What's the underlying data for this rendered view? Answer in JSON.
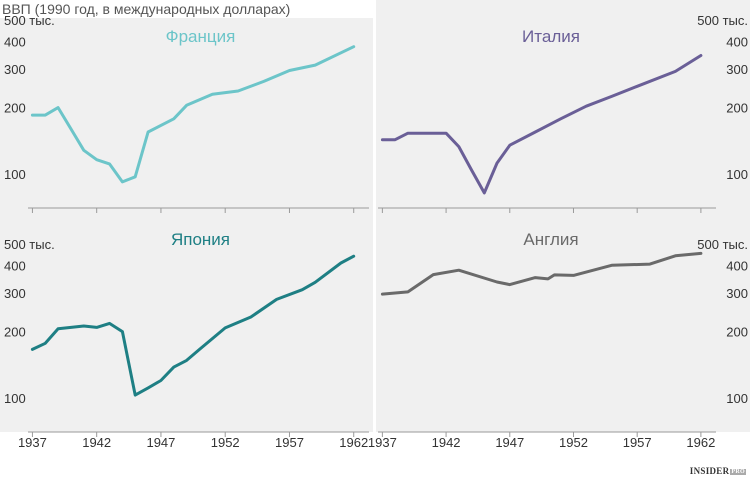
{
  "title": "ВВП (1990 год, в международных долларах)",
  "brand": {
    "name": "INSIDER",
    "badge": "PRO"
  },
  "colors": {
    "panel_bg": "#f0f0f0",
    "axis": "#9a9a9a",
    "text": "#333333",
    "france": "#6cc5c9",
    "italy": "#6a5f97",
    "japan": "#1e7f84",
    "england": "#6a6a6a"
  },
  "chart_data": [
    {
      "type": "line",
      "title": "Франция",
      "yscale": "log",
      "ylim": [
        70,
        500
      ],
      "xlim": [
        1936.5,
        1963.5
      ],
      "y_ticks": [
        100,
        200,
        300,
        400,
        500
      ],
      "y_tick_labels": [
        "100",
        "200",
        "300",
        "400",
        "500 тыс."
      ],
      "y_axis_side": "left",
      "x_ticks": [
        1937,
        1942,
        1947,
        1952,
        1957,
        1962
      ],
      "x_tick_labels": [],
      "x": [
        1937,
        1938,
        1939,
        1940,
        1941,
        1942,
        1943,
        1944,
        1945,
        1946,
        1948,
        1949,
        1951,
        1953,
        1955,
        1957,
        1959,
        1962
      ],
      "y": [
        185,
        185,
        200,
        160,
        128,
        116,
        111,
        92,
        97,
        155,
        178,
        205,
        230,
        238,
        263,
        295,
        312,
        378
      ]
    },
    {
      "type": "line",
      "title": "Италия",
      "yscale": "log",
      "ylim": [
        70,
        500
      ],
      "xlim": [
        1936.5,
        1963.5
      ],
      "y_ticks": [
        100,
        200,
        300,
        400,
        500
      ],
      "y_tick_labels": [
        "100",
        "200",
        "300",
        "400",
        "500 тыс."
      ],
      "y_axis_side": "right",
      "x_ticks": [
        1937,
        1942,
        1947,
        1952,
        1957,
        1962
      ],
      "x_tick_labels": [],
      "x": [
        1937,
        1938,
        1939,
        1940,
        1941,
        1942,
        1943,
        1944,
        1945,
        1946,
        1947,
        1949,
        1951,
        1953,
        1955,
        1957,
        1960,
        1962
      ],
      "y": [
        143,
        143,
        153,
        153,
        153,
        153,
        133,
        104,
        82,
        112,
        135,
        155,
        178,
        203,
        225,
        250,
        292,
        345
      ]
    },
    {
      "type": "line",
      "title": "Япония",
      "yscale": "log",
      "ylim": [
        70,
        500
      ],
      "xlim": [
        1936.5,
        1963.5
      ],
      "y_ticks": [
        100,
        200,
        300,
        400,
        500
      ],
      "y_tick_labels": [
        "100",
        "200",
        "300",
        "400",
        "500 тыс."
      ],
      "y_axis_side": "left",
      "x_ticks": [
        1937,
        1942,
        1947,
        1952,
        1957,
        1962
      ],
      "x_tick_labels": [
        "1937",
        "1942",
        "1947",
        "1952",
        "1957",
        "1962"
      ],
      "x": [
        1937,
        1938,
        1939,
        1940,
        1941,
        1942,
        1943,
        1944,
        1945,
        1946,
        1947,
        1948,
        1949,
        1950,
        1952,
        1954,
        1956,
        1958,
        1959,
        1961,
        1962
      ],
      "y": [
        166,
        177,
        206,
        209,
        212,
        209,
        218,
        200,
        103,
        111,
        120,
        138,
        148,
        166,
        208,
        233,
        280,
        310,
        335,
        410,
        440
      ]
    },
    {
      "type": "line",
      "title": "Англия",
      "yscale": "log",
      "ylim": [
        70,
        500
      ],
      "xlim": [
        1936.5,
        1963.5
      ],
      "y_ticks": [
        100,
        200,
        300,
        400,
        500
      ],
      "y_tick_labels": [
        "100",
        "200",
        "300",
        "400",
        "500 тыс."
      ],
      "y_axis_side": "right",
      "x_ticks": [
        1937,
        1942,
        1947,
        1952,
        1957,
        1962
      ],
      "x_tick_labels": [
        "1937",
        "1942",
        "1947",
        "1952",
        "1957",
        "1962"
      ],
      "x": [
        1937,
        1939,
        1941,
        1943,
        1946,
        1947,
        1949,
        1950,
        1950.5,
        1952,
        1955,
        1958,
        1960,
        1962
      ],
      "y": [
        296,
        303,
        363,
        380,
        336,
        327,
        352,
        347,
        362,
        360,
        400,
        405,
        442,
        453
      ]
    }
  ]
}
